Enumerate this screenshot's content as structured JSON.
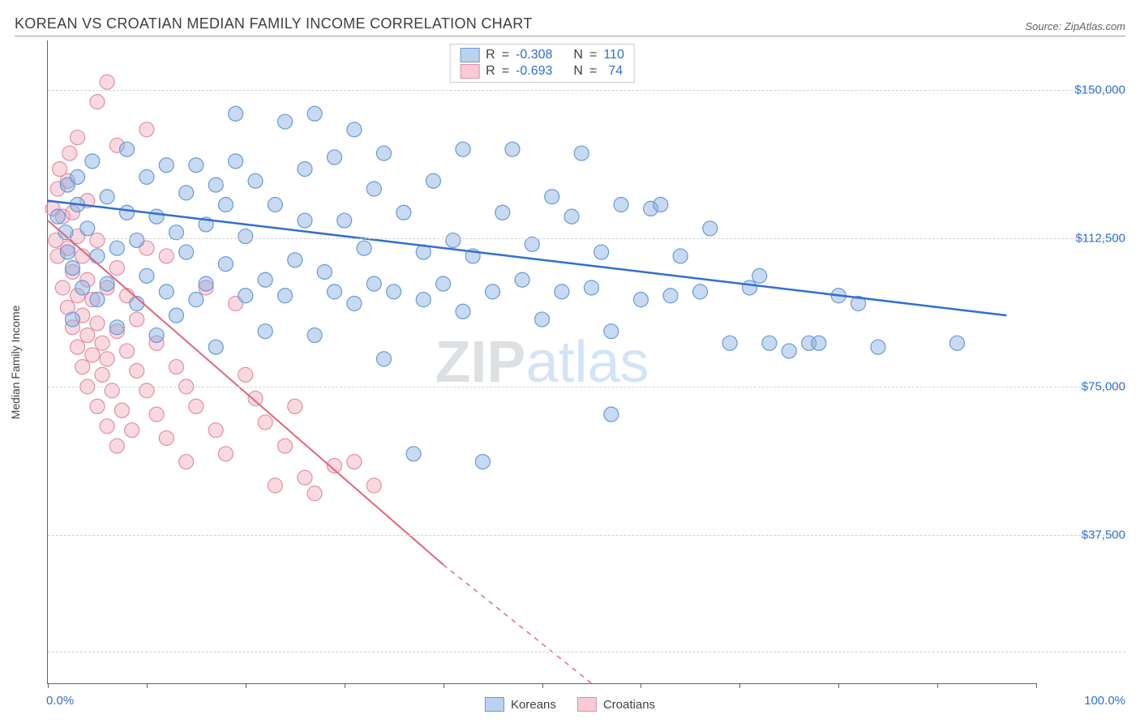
{
  "title": "KOREAN VS CROATIAN MEDIAN FAMILY INCOME CORRELATION CHART",
  "source_label": "Source: ZipAtlas.com",
  "watermark": {
    "part1": "ZIP",
    "part2": "atlas"
  },
  "y_axis_title": "Median Family Income",
  "x_axis": {
    "min_pct": 0.0,
    "max_pct": 100.0,
    "min_label": "0.0%",
    "max_label": "100.0%",
    "tick_positions_pct": [
      0,
      10,
      20,
      30,
      40,
      50,
      60,
      70,
      80,
      90,
      100
    ]
  },
  "y_axis": {
    "min": 0,
    "max": 162500,
    "ticks": [
      {
        "value": 37500,
        "label": "$37,500"
      },
      {
        "value": 75000,
        "label": "$75,000"
      },
      {
        "value": 112500,
        "label": "$112,500"
      },
      {
        "value": 150000,
        "label": "$150,000"
      }
    ],
    "grid_values": [
      8000,
      37500,
      75000,
      112500,
      150000
    ]
  },
  "legend": {
    "series1_label": "Koreans",
    "series2_label": "Croatians"
  },
  "stats": {
    "r_label": "R",
    "n_label": "N",
    "eq": "=",
    "series1": {
      "r": "-0.308",
      "n": "110"
    },
    "series2": {
      "r": "-0.693",
      "n": "74"
    }
  },
  "series": [
    {
      "id": "koreans",
      "stroke": "#2f6fd1",
      "fill": "rgba(131,173,225,0.45)",
      "marker_stroke": "#6a9ad6",
      "marker_radius": 9,
      "line_width": 2.5,
      "trend_solid": {
        "x1_pct": 0,
        "y1": 122000,
        "x2_pct": 97,
        "y2": 93000
      },
      "points": [
        {
          "x": 1,
          "y": 118000
        },
        {
          "x": 1.8,
          "y": 114000
        },
        {
          "x": 2,
          "y": 126000
        },
        {
          "x": 2,
          "y": 109000
        },
        {
          "x": 2.5,
          "y": 105000
        },
        {
          "x": 2.5,
          "y": 92000
        },
        {
          "x": 3,
          "y": 121000
        },
        {
          "x": 3,
          "y": 128000
        },
        {
          "x": 3.5,
          "y": 100000
        },
        {
          "x": 4,
          "y": 115000
        },
        {
          "x": 4.5,
          "y": 132000
        },
        {
          "x": 5,
          "y": 108000
        },
        {
          "x": 5,
          "y": 97000
        },
        {
          "x": 6,
          "y": 101000
        },
        {
          "x": 6,
          "y": 123000
        },
        {
          "x": 7,
          "y": 110000
        },
        {
          "x": 7,
          "y": 90000
        },
        {
          "x": 8,
          "y": 119000
        },
        {
          "x": 8,
          "y": 135000
        },
        {
          "x": 9,
          "y": 112000
        },
        {
          "x": 9,
          "y": 96000
        },
        {
          "x": 10,
          "y": 103000
        },
        {
          "x": 10,
          "y": 128000
        },
        {
          "x": 11,
          "y": 118000
        },
        {
          "x": 11,
          "y": 88000
        },
        {
          "x": 12,
          "y": 99000
        },
        {
          "x": 12,
          "y": 131000
        },
        {
          "x": 13,
          "y": 114000
        },
        {
          "x": 13,
          "y": 93000
        },
        {
          "x": 14,
          "y": 124000
        },
        {
          "x": 14,
          "y": 109000
        },
        {
          "x": 15,
          "y": 131000
        },
        {
          "x": 15,
          "y": 97000
        },
        {
          "x": 16,
          "y": 101000
        },
        {
          "x": 16,
          "y": 116000
        },
        {
          "x": 17,
          "y": 126000
        },
        {
          "x": 17,
          "y": 85000
        },
        {
          "x": 18,
          "y": 106000
        },
        {
          "x": 18,
          "y": 121000
        },
        {
          "x": 19,
          "y": 144000
        },
        {
          "x": 19,
          "y": 132000
        },
        {
          "x": 20,
          "y": 98000
        },
        {
          "x": 20,
          "y": 113000
        },
        {
          "x": 21,
          "y": 127000
        },
        {
          "x": 22,
          "y": 102000
        },
        {
          "x": 22,
          "y": 89000
        },
        {
          "x": 23,
          "y": 121000
        },
        {
          "x": 24,
          "y": 142000
        },
        {
          "x": 24,
          "y": 98000
        },
        {
          "x": 25,
          "y": 107000
        },
        {
          "x": 26,
          "y": 130000
        },
        {
          "x": 26,
          "y": 117000
        },
        {
          "x": 27,
          "y": 144000
        },
        {
          "x": 27,
          "y": 88000
        },
        {
          "x": 28,
          "y": 104000
        },
        {
          "x": 29,
          "y": 133000
        },
        {
          "x": 29,
          "y": 99000
        },
        {
          "x": 30,
          "y": 117000
        },
        {
          "x": 31,
          "y": 140000
        },
        {
          "x": 31,
          "y": 96000
        },
        {
          "x": 32,
          "y": 110000
        },
        {
          "x": 33,
          "y": 125000
        },
        {
          "x": 33,
          "y": 101000
        },
        {
          "x": 34,
          "y": 134000
        },
        {
          "x": 34,
          "y": 82000
        },
        {
          "x": 35,
          "y": 99000
        },
        {
          "x": 36,
          "y": 119000
        },
        {
          "x": 37,
          "y": 58000
        },
        {
          "x": 38,
          "y": 109000
        },
        {
          "x": 38,
          "y": 97000
        },
        {
          "x": 39,
          "y": 127000
        },
        {
          "x": 40,
          "y": 101000
        },
        {
          "x": 41,
          "y": 112000
        },
        {
          "x": 42,
          "y": 135000
        },
        {
          "x": 42,
          "y": 94000
        },
        {
          "x": 43,
          "y": 108000
        },
        {
          "x": 44,
          "y": 56000
        },
        {
          "x": 45,
          "y": 99000
        },
        {
          "x": 46,
          "y": 119000
        },
        {
          "x": 47,
          "y": 135000
        },
        {
          "x": 48,
          "y": 102000
        },
        {
          "x": 49,
          "y": 111000
        },
        {
          "x": 50,
          "y": 92000
        },
        {
          "x": 51,
          "y": 123000
        },
        {
          "x": 52,
          "y": 99000
        },
        {
          "x": 53,
          "y": 118000
        },
        {
          "x": 54,
          "y": 134000
        },
        {
          "x": 55,
          "y": 100000
        },
        {
          "x": 56,
          "y": 109000
        },
        {
          "x": 57,
          "y": 89000
        },
        {
          "x": 57,
          "y": 68000
        },
        {
          "x": 58,
          "y": 121000
        },
        {
          "x": 60,
          "y": 97000
        },
        {
          "x": 61,
          "y": 120000
        },
        {
          "x": 62,
          "y": 121000
        },
        {
          "x": 63,
          "y": 98000
        },
        {
          "x": 64,
          "y": 108000
        },
        {
          "x": 66,
          "y": 99000
        },
        {
          "x": 67,
          "y": 115000
        },
        {
          "x": 69,
          "y": 86000
        },
        {
          "x": 71,
          "y": 100000
        },
        {
          "x": 72,
          "y": 103000
        },
        {
          "x": 73,
          "y": 86000
        },
        {
          "x": 75,
          "y": 84000
        },
        {
          "x": 77,
          "y": 86000
        },
        {
          "x": 78,
          "y": 86000
        },
        {
          "x": 80,
          "y": 98000
        },
        {
          "x": 82,
          "y": 96000
        },
        {
          "x": 84,
          "y": 85000
        },
        {
          "x": 92,
          "y": 86000
        }
      ]
    },
    {
      "id": "croatians",
      "stroke": "#e0657f",
      "fill": "rgba(240,160,180,0.40)",
      "marker_stroke": "#e38fa3",
      "marker_radius": 9,
      "line_width": 2,
      "trend_solid": {
        "x1_pct": 0,
        "y1": 117000,
        "x2_pct": 40,
        "y2": 30000
      },
      "trend_dashed": {
        "x1_pct": 40,
        "y1": 30000,
        "x2_pct": 55,
        "y2": 0
      },
      "points": [
        {
          "x": 0.5,
          "y": 120000
        },
        {
          "x": 0.8,
          "y": 112000
        },
        {
          "x": 1,
          "y": 125000
        },
        {
          "x": 1,
          "y": 108000
        },
        {
          "x": 1.2,
          "y": 130000
        },
        {
          "x": 1.5,
          "y": 100000
        },
        {
          "x": 1.5,
          "y": 118000
        },
        {
          "x": 2,
          "y": 95000
        },
        {
          "x": 2,
          "y": 110000
        },
        {
          "x": 2,
          "y": 127000
        },
        {
          "x": 2.2,
          "y": 134000
        },
        {
          "x": 2.5,
          "y": 90000
        },
        {
          "x": 2.5,
          "y": 104000
        },
        {
          "x": 2.5,
          "y": 119000
        },
        {
          "x": 3,
          "y": 85000
        },
        {
          "x": 3,
          "y": 98000
        },
        {
          "x": 3,
          "y": 113000
        },
        {
          "x": 3,
          "y": 138000
        },
        {
          "x": 3.5,
          "y": 80000
        },
        {
          "x": 3.5,
          "y": 93000
        },
        {
          "x": 3.5,
          "y": 108000
        },
        {
          "x": 4,
          "y": 75000
        },
        {
          "x": 4,
          "y": 88000
        },
        {
          "x": 4,
          "y": 102000
        },
        {
          "x": 4,
          "y": 122000
        },
        {
          "x": 4.5,
          "y": 83000
        },
        {
          "x": 4.5,
          "y": 97000
        },
        {
          "x": 5,
          "y": 70000
        },
        {
          "x": 5,
          "y": 91000
        },
        {
          "x": 5,
          "y": 112000
        },
        {
          "x": 5,
          "y": 147000
        },
        {
          "x": 5.5,
          "y": 78000
        },
        {
          "x": 5.5,
          "y": 86000
        },
        {
          "x": 6,
          "y": 65000
        },
        {
          "x": 6,
          "y": 82000
        },
        {
          "x": 6,
          "y": 100000
        },
        {
          "x": 6,
          "y": 152000
        },
        {
          "x": 6.5,
          "y": 74000
        },
        {
          "x": 7,
          "y": 60000
        },
        {
          "x": 7,
          "y": 89000
        },
        {
          "x": 7,
          "y": 105000
        },
        {
          "x": 7,
          "y": 136000
        },
        {
          "x": 7.5,
          "y": 69000
        },
        {
          "x": 8,
          "y": 84000
        },
        {
          "x": 8,
          "y": 98000
        },
        {
          "x": 8.5,
          "y": 64000
        },
        {
          "x": 9,
          "y": 79000
        },
        {
          "x": 9,
          "y": 92000
        },
        {
          "x": 10,
          "y": 140000
        },
        {
          "x": 10,
          "y": 74000
        },
        {
          "x": 10,
          "y": 110000
        },
        {
          "x": 11,
          "y": 68000
        },
        {
          "x": 11,
          "y": 86000
        },
        {
          "x": 12,
          "y": 62000
        },
        {
          "x": 12,
          "y": 108000
        },
        {
          "x": 13,
          "y": 80000
        },
        {
          "x": 14,
          "y": 56000
        },
        {
          "x": 14,
          "y": 75000
        },
        {
          "x": 15,
          "y": 70000
        },
        {
          "x": 16,
          "y": 100000
        },
        {
          "x": 17,
          "y": 64000
        },
        {
          "x": 18,
          "y": 58000
        },
        {
          "x": 19,
          "y": 96000
        },
        {
          "x": 20,
          "y": 78000
        },
        {
          "x": 21,
          "y": 72000
        },
        {
          "x": 22,
          "y": 66000
        },
        {
          "x": 23,
          "y": 50000
        },
        {
          "x": 24,
          "y": 60000
        },
        {
          "x": 25,
          "y": 70000
        },
        {
          "x": 26,
          "y": 52000
        },
        {
          "x": 27,
          "y": 48000
        },
        {
          "x": 29,
          "y": 55000
        },
        {
          "x": 31,
          "y": 56000
        },
        {
          "x": 33,
          "y": 50000
        }
      ]
    }
  ],
  "colors": {
    "grid": "#d0d3d7",
    "axis": "#5f6368",
    "blue_text": "#2f6fd1",
    "series1_swatch_fill": "rgba(131,173,225,0.55)",
    "series1_swatch_border": "#6a9ad6",
    "series2_swatch_fill": "rgba(240,160,180,0.55)",
    "series2_swatch_border": "#e38fa3"
  },
  "chart_type": "scatter-with-trend"
}
